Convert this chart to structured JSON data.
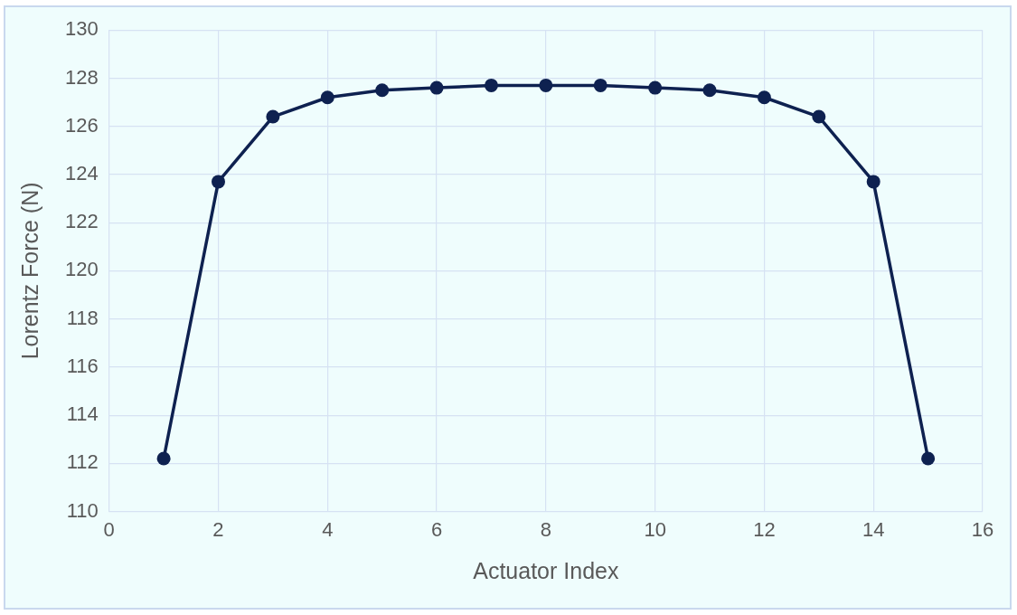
{
  "chart_data": {
    "type": "line",
    "xlabel": "Actuator Index",
    "ylabel": "Lorentz Force (N)",
    "x": [
      1,
      2,
      3,
      4,
      5,
      6,
      7,
      8,
      9,
      10,
      11,
      12,
      13,
      14,
      15
    ],
    "series": [
      {
        "color": "#0e2150",
        "values": [
          112.2,
          123.7,
          126.4,
          127.2,
          127.5,
          127.6,
          127.7,
          127.7,
          127.7,
          127.6,
          127.5,
          127.2,
          126.4,
          123.7,
          112.2
        ]
      }
    ],
    "xlim": [
      0,
      16
    ],
    "xticks": [
      0,
      2,
      4,
      6,
      8,
      10,
      12,
      14,
      16
    ],
    "ylim": [
      110,
      130
    ],
    "yticks": [
      110,
      112,
      114,
      116,
      118,
      120,
      122,
      124,
      126,
      128,
      130
    ],
    "grid": true,
    "legend": false,
    "marker": "circle",
    "line_style": "solid"
  }
}
